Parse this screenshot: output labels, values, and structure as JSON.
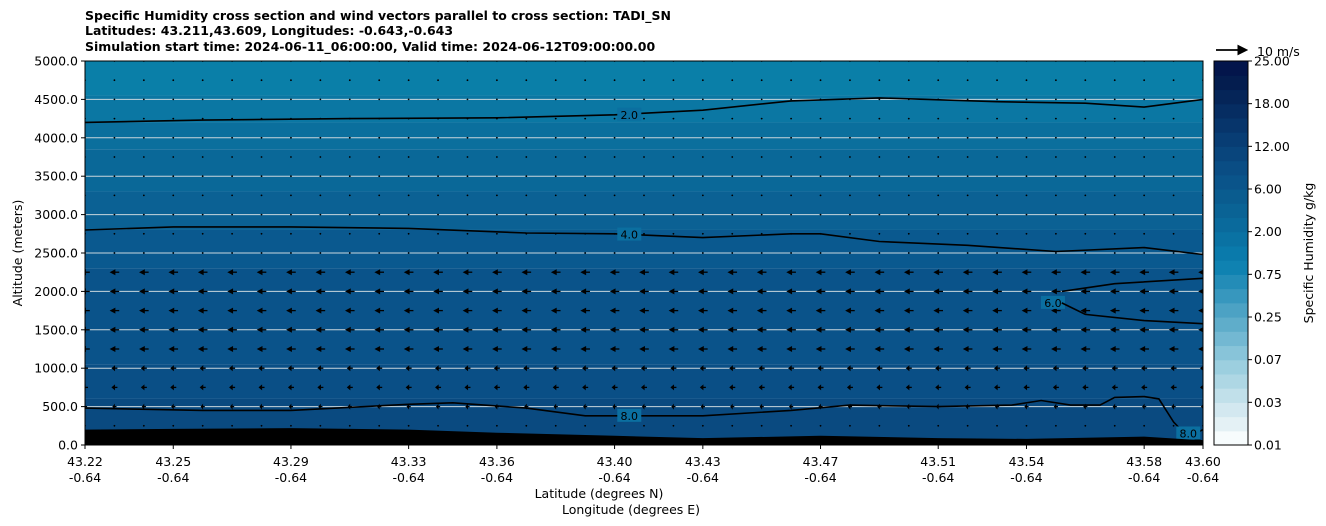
{
  "chart_data": {
    "type": "heatmap",
    "title_lines": [
      "Specific Humidity cross section and wind vectors parallel to cross section: TADI_SN",
      "Latitudes: 43.211,43.609, Longitudes: -0.643,-0.643",
      "Simulation start time: 2024-06-11_06:00:00, Valid time: 2024-06-12T09:00:00.00"
    ],
    "ylabel": "Altitude (meters)",
    "xlabel_lines": [
      "Latitude (degrees N)",
      "Longitude (degrees E)"
    ],
    "ylim": [
      0,
      5000
    ],
    "y_ticks": [
      {
        "value": 0,
        "label": "0.0"
      },
      {
        "value": 500,
        "label": "500.0"
      },
      {
        "value": 1000,
        "label": "1000.0"
      },
      {
        "value": 1500,
        "label": "1500.0"
      },
      {
        "value": 2000,
        "label": "2000.0"
      },
      {
        "value": 2500,
        "label": "2500.0"
      },
      {
        "value": 3000,
        "label": "3000.0"
      },
      {
        "value": 3500,
        "label": "3500.0"
      },
      {
        "value": 4000,
        "label": "4000.0"
      },
      {
        "value": 4500,
        "label": "4500.0"
      },
      {
        "value": 5000,
        "label": "5000.0"
      }
    ],
    "xlim": [
      43.22,
      43.6
    ],
    "x_ticks": [
      {
        "value": 43.22,
        "lat": "43.22",
        "lon": "-0.64"
      },
      {
        "value": 43.25,
        "lat": "43.25",
        "lon": "-0.64"
      },
      {
        "value": 43.29,
        "lat": "43.29",
        "lon": "-0.64"
      },
      {
        "value": 43.33,
        "lat": "43.33",
        "lon": "-0.64"
      },
      {
        "value": 43.36,
        "lat": "43.36",
        "lon": "-0.64"
      },
      {
        "value": 43.4,
        "lat": "43.40",
        "lon": "-0.64"
      },
      {
        "value": 43.43,
        "lat": "43.43",
        "lon": "-0.64"
      },
      {
        "value": 43.47,
        "lat": "43.47",
        "lon": "-0.64"
      },
      {
        "value": 43.51,
        "lat": "43.51",
        "lon": "-0.64"
      },
      {
        "value": 43.54,
        "lat": "43.54",
        "lon": "-0.64"
      },
      {
        "value": 43.58,
        "lat": "43.58",
        "lon": "-0.64"
      },
      {
        "value": 43.6,
        "lat": "43.60",
        "lon": "-0.64"
      }
    ],
    "fill_bands": [
      {
        "top_alt": 5000,
        "color": "#0a7fa8"
      },
      {
        "top_alt": 4550,
        "color": "#0b77a3"
      },
      {
        "top_alt": 4200,
        "color": "#0b6f9d"
      },
      {
        "top_alt": 3850,
        "color": "#0a6898"
      },
      {
        "top_alt": 3300,
        "color": "#0b6194"
      },
      {
        "top_alt": 2800,
        "color": "#0a598f"
      },
      {
        "top_alt": 2300,
        "color": "#0a538a"
      },
      {
        "top_alt": 1050,
        "color": "#0a4f86"
      },
      {
        "top_alt": 600,
        "color": "#0a4a80"
      }
    ],
    "contours": [
      {
        "label": "2.0",
        "label_x": 43.405,
        "label_alt": 4300,
        "points": [
          [
            43.22,
            4200
          ],
          [
            43.26,
            4230
          ],
          [
            43.31,
            4250
          ],
          [
            43.36,
            4260
          ],
          [
            43.4,
            4300
          ],
          [
            43.43,
            4360
          ],
          [
            43.46,
            4480
          ],
          [
            43.49,
            4520
          ],
          [
            43.53,
            4470
          ],
          [
            43.56,
            4450
          ],
          [
            43.58,
            4400
          ],
          [
            43.6,
            4500
          ]
        ]
      },
      {
        "label": "4.0",
        "label_x": 43.405,
        "label_alt": 2740,
        "points": [
          [
            43.22,
            2800
          ],
          [
            43.25,
            2840
          ],
          [
            43.29,
            2840
          ],
          [
            43.33,
            2820
          ],
          [
            43.37,
            2760
          ],
          [
            43.4,
            2750
          ],
          [
            43.43,
            2700
          ],
          [
            43.46,
            2750
          ],
          [
            43.47,
            2750
          ],
          [
            43.49,
            2650
          ],
          [
            43.52,
            2600
          ],
          [
            43.55,
            2520
          ],
          [
            43.58,
            2570
          ],
          [
            43.6,
            2480
          ]
        ]
      },
      {
        "label": "8.0",
        "label_x": 43.405,
        "label_alt": 380,
        "points": [
          [
            43.22,
            480
          ],
          [
            43.26,
            450
          ],
          [
            43.29,
            450
          ],
          [
            43.33,
            530
          ],
          [
            43.345,
            550
          ],
          [
            43.37,
            480
          ],
          [
            43.39,
            380
          ],
          [
            43.43,
            380
          ],
          [
            43.46,
            450
          ],
          [
            43.48,
            520
          ],
          [
            43.51,
            500
          ],
          [
            43.535,
            520
          ],
          [
            43.545,
            580
          ],
          [
            43.555,
            520
          ],
          [
            43.565,
            520
          ],
          [
            43.57,
            620
          ],
          [
            43.58,
            630
          ],
          [
            43.585,
            600
          ],
          [
            43.59,
            300
          ],
          [
            43.595,
            100
          ],
          [
            43.6,
            50
          ]
        ]
      },
      {
        "label": "6.0",
        "label_x": 43.549,
        "label_alt": 1850,
        "points": [
          [
            43.552,
            2000
          ],
          [
            43.57,
            2100
          ],
          [
            43.6,
            2170
          ]
        ]
      },
      {
        "label": "",
        "label_x": 0,
        "label_alt": 0,
        "points": [
          [
            43.552,
            1850
          ],
          [
            43.56,
            1700
          ],
          [
            43.58,
            1620
          ],
          [
            43.6,
            1580
          ]
        ]
      },
      {
        "label": "8.0",
        "label_x": 43.595,
        "label_alt": 150,
        "points": [
          [
            43.598,
            160
          ],
          [
            43.6,
            200
          ]
        ]
      }
    ],
    "terrain": [
      [
        43.22,
        200
      ],
      [
        43.25,
        210
      ],
      [
        43.29,
        220
      ],
      [
        43.33,
        200
      ],
      [
        43.36,
        160
      ],
      [
        43.4,
        120
      ],
      [
        43.43,
        90
      ],
      [
        43.47,
        120
      ],
      [
        43.51,
        90
      ],
      [
        43.54,
        80
      ],
      [
        43.58,
        110
      ],
      [
        43.6,
        60
      ]
    ],
    "terrain_color": "#000000",
    "wind_field": {
      "x_start": 43.22,
      "x_step": 0.01,
      "x_count": 39,
      "alt_start": 0,
      "alt_step": 250,
      "alt_count": 21,
      "strong_alt_min": 1250,
      "strong_alt_max": 2250,
      "strong_u": -3.2,
      "moderate_alts": [
        750,
        1000,
        2250
      ],
      "moderate_u": -2.0,
      "low_alt": 500,
      "low_u": -1.4,
      "weak_u": -0.4
    },
    "wind_reference": {
      "label": "10 m/s",
      "u": 10
    },
    "colorbar": {
      "label": "Specific Humidity g/kg",
      "tick_labels": [
        "25.00",
        "18.00",
        "12.00",
        "6.00",
        "2.00",
        "0.75",
        "0.25",
        "0.07",
        "0.03",
        "0.01"
      ],
      "colors": [
        "#f7fcfd",
        "#e4f1f5",
        "#d3e8f0",
        "#c1e0ea",
        "#aed7e4",
        "#9ccfdf",
        "#88c4d9",
        "#73b8d2",
        "#5fadca",
        "#4ca2c4",
        "#3797be",
        "#238cb7",
        "#0f82b1",
        "#0a7aab",
        "#0a72a3",
        "#0a6a9c",
        "#0a6395",
        "#0a5c8f",
        "#0a548a",
        "#0a4d84",
        "#09457c",
        "#083d74",
        "#07356b",
        "#062d62",
        "#052558",
        "#041d4f",
        "#03154b"
      ]
    },
    "grid": "horizontal",
    "grid_color": "#c9d6dc"
  }
}
